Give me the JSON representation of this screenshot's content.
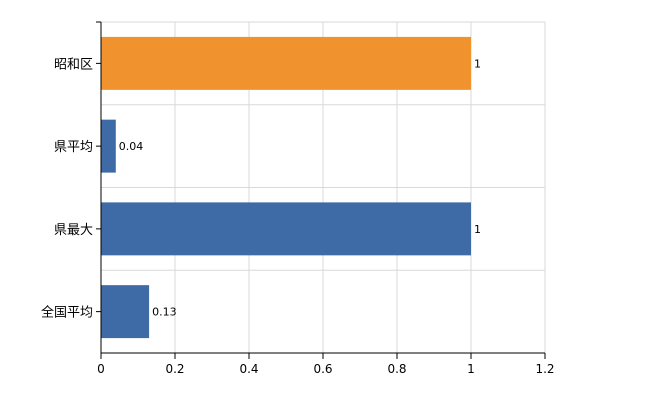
{
  "chart_data": {
    "type": "bar",
    "orientation": "horizontal",
    "categories": [
      "昭和区",
      "県平均",
      "県最大",
      "全国平均"
    ],
    "values": [
      1,
      0.04,
      1,
      0.13
    ],
    "data_labels": [
      "1",
      "0.04",
      "1",
      "0.13"
    ],
    "bar_colors": [
      "#f0922e",
      "#3e6aa6",
      "#3e6aa6",
      "#3e6aa6"
    ],
    "xlim": [
      0,
      1.2
    ],
    "xticks": [
      0,
      0.2,
      0.4,
      0.6,
      0.8,
      1,
      1.2
    ],
    "xtick_labels": [
      "0",
      "0.2",
      "0.4",
      "0.6",
      "0.8",
      "1",
      "1.2"
    ],
    "grid": true,
    "title": "",
    "xlabel": "",
    "ylabel": ""
  }
}
